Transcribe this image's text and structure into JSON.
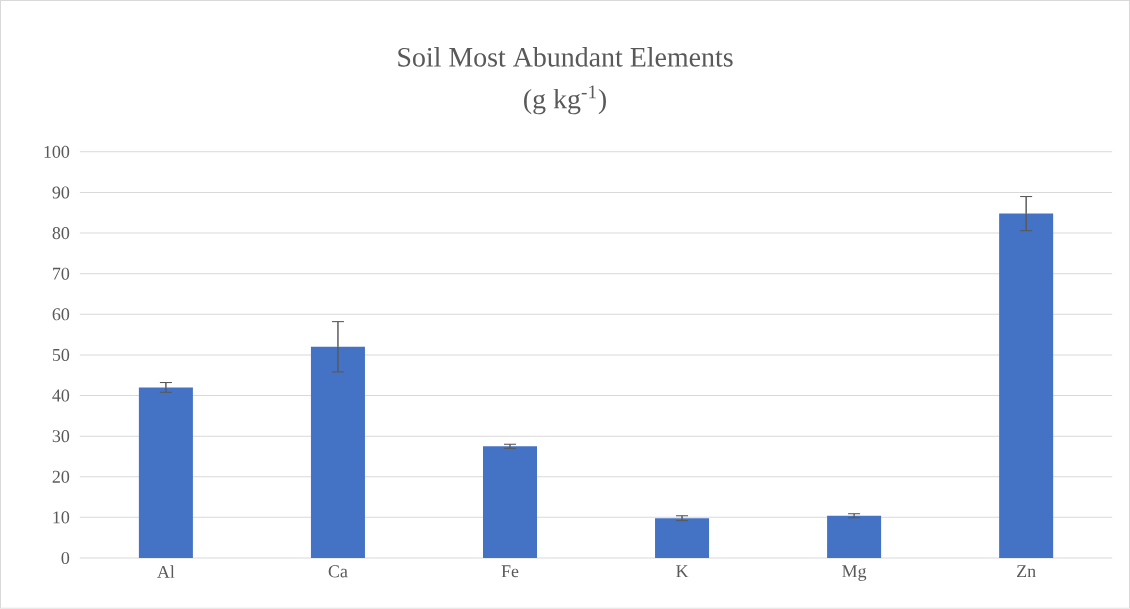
{
  "chart_data": {
    "type": "bar",
    "title": "Soil Most Abundant Elements",
    "subtitle": "(g kg$^{-1}$)",
    "categories": [
      "Al",
      "Ca",
      "Fe",
      "K",
      "Mg",
      "Zn"
    ],
    "values": [
      42,
      52,
      27.5,
      9.8,
      10.4,
      84.8
    ],
    "errors": [
      1.2,
      6.2,
      0.5,
      0.6,
      0.5,
      4.2
    ],
    "color": "#4472c4",
    "ylim": [
      0,
      100
    ],
    "yticks": [
      0,
      10,
      20,
      30,
      40,
      50,
      60,
      70,
      80,
      90,
      100
    ],
    "grid": "y"
  }
}
